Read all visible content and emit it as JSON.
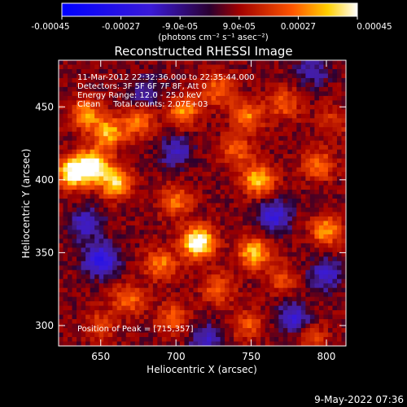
{
  "colorbar": {
    "ticks": [
      "-0.00045",
      "-0.00027",
      "-9.0e-05",
      "9.0e-05",
      "0.00027",
      "0.00045"
    ],
    "unit_label": "(photons cm⁻² s⁻¹ asec⁻²)"
  },
  "annotations": {
    "line1": "11-Mar-2012 22:32:36.000 to 22:35:44.000",
    "line2": "Detectors: 3F 5F 6F 7F 8F, Att 0",
    "line3": "Energy Range: 12.0 - 25.0 keV",
    "line4": "Clean     Total counts: 2.07E+03",
    "peak": "Position of Peak = [715,357]"
  },
  "footer": {
    "timestamp": "9-May-2022 07:36"
  },
  "chart_data": {
    "type": "heatmap",
    "title": "Reconstructed RHESSI Image",
    "xlabel": "Heliocentric X (arcsec)",
    "ylabel": "Heliocentric Y (arcsec)",
    "xlim": [
      622,
      813
    ],
    "ylim": [
      286,
      482
    ],
    "xticks": [
      "650",
      "700",
      "750",
      "800"
    ],
    "yticks": [
      "300",
      "350",
      "400",
      "450"
    ],
    "xtick_values": [
      650,
      700,
      750,
      800
    ],
    "ytick_values": [
      300,
      350,
      400,
      450
    ],
    "colorbar_range": [
      -0.00045,
      0.00045
    ],
    "peak": {
      "x": 715,
      "y": 357
    },
    "sources": [
      {
        "x": 715,
        "y": 357,
        "value": 0.00045
      },
      {
        "x": 632,
        "y": 405,
        "value": 0.0004
      },
      {
        "x": 645,
        "y": 410,
        "value": 0.00038
      },
      {
        "x": 660,
        "y": 398,
        "value": 0.00032
      },
      {
        "x": 655,
        "y": 432,
        "value": 0.00028
      },
      {
        "x": 640,
        "y": 445,
        "value": 0.00025
      },
      {
        "x": 675,
        "y": 440,
        "value": 0.00022
      },
      {
        "x": 705,
        "y": 447,
        "value": 0.00024
      },
      {
        "x": 728,
        "y": 462,
        "value": 0.0002
      },
      {
        "x": 748,
        "y": 444,
        "value": 0.00022
      },
      {
        "x": 772,
        "y": 452,
        "value": 0.00018
      },
      {
        "x": 755,
        "y": 400,
        "value": 0.0003
      },
      {
        "x": 740,
        "y": 420,
        "value": 0.00018
      },
      {
        "x": 795,
        "y": 410,
        "value": 0.0002
      },
      {
        "x": 700,
        "y": 385,
        "value": 0.0002
      },
      {
        "x": 752,
        "y": 350,
        "value": 0.0003
      },
      {
        "x": 800,
        "y": 365,
        "value": 0.00025
      },
      {
        "x": 690,
        "y": 342,
        "value": 0.00022
      },
      {
        "x": 728,
        "y": 325,
        "value": 0.00018
      },
      {
        "x": 770,
        "y": 332,
        "value": 0.00015
      },
      {
        "x": 668,
        "y": 318,
        "value": 0.0002
      },
      {
        "x": 650,
        "y": 300,
        "value": 0.00014
      },
      {
        "x": 698,
        "y": 305,
        "value": 0.00018
      },
      {
        "x": 748,
        "y": 300,
        "value": 0.00016
      },
      {
        "x": 790,
        "y": 290,
        "value": 0.00014
      },
      {
        "x": 805,
        "y": 440,
        "value": 0.00012
      },
      {
        "x": 650,
        "y": 345,
        "value": -0.0003
      },
      {
        "x": 640,
        "y": 370,
        "value": -0.0002
      },
      {
        "x": 765,
        "y": 375,
        "value": -0.00025
      },
      {
        "x": 700,
        "y": 420,
        "value": -0.00018
      },
      {
        "x": 778,
        "y": 305,
        "value": -0.00022
      },
      {
        "x": 720,
        "y": 290,
        "value": -0.00018
      },
      {
        "x": 680,
        "y": 460,
        "value": -0.00015
      },
      {
        "x": 790,
        "y": 475,
        "value": -0.00015
      },
      {
        "x": 800,
        "y": 335,
        "value": -0.0002
      }
    ]
  }
}
